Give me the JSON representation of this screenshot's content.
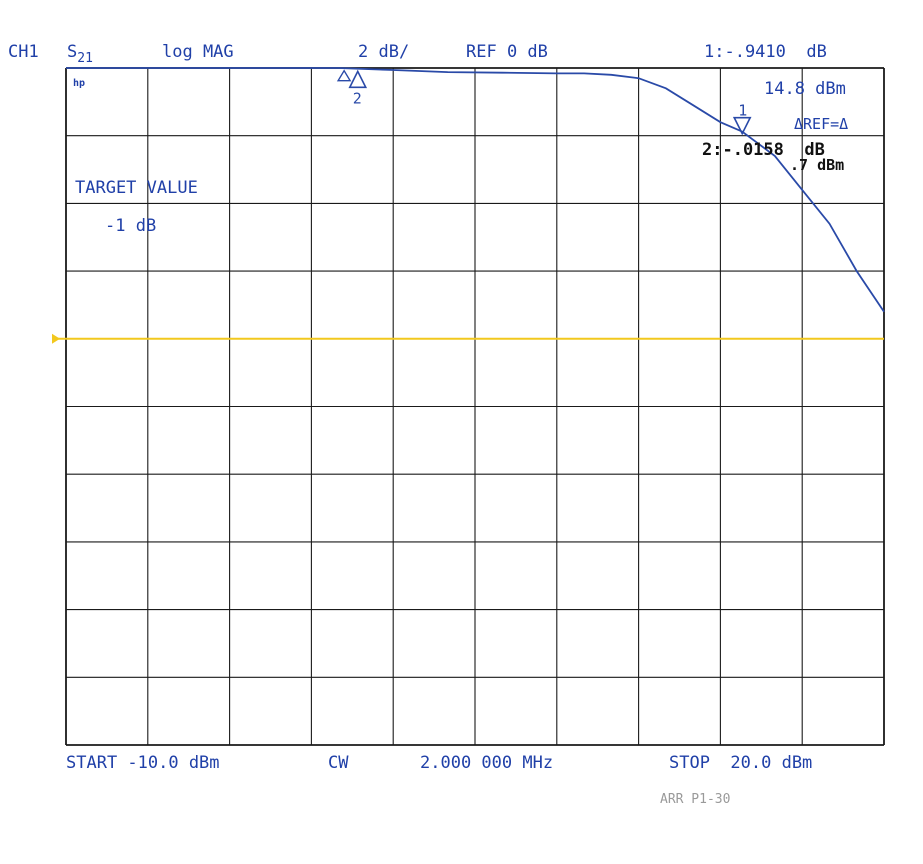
{
  "header": {
    "channel": "CH1",
    "param_base": "S",
    "param_sub": "21",
    "format": "log MAG",
    "scale": "2 dB/",
    "ref": "REF 0 dB",
    "marker1_readout": "1:-.9410  dB",
    "marker1_power": "14.8 dBm",
    "delta_ref": "ΔREF=Δ",
    "marker2_readout": "2:-.0158  dB",
    "marker2_power": ".7 dBm",
    "hp_logo": "hp"
  },
  "target": {
    "label": "TARGET VALUE",
    "value": "-1 dB"
  },
  "footer": {
    "start": "START -10.0 dBm",
    "cw_label": "CW",
    "cw_value": "2.000 000 MHz",
    "stop": "STOP  20.0 dBm",
    "stamp": "ARR P1-30"
  },
  "colors": {
    "trace": "#2a4aa8",
    "grid": "#1a1a1a",
    "reference_line": "#f2c81e",
    "text": "#2040a8"
  },
  "chart_data": {
    "type": "line",
    "xlabel": "",
    "ylabel": "",
    "xlim": [
      -10,
      20
    ],
    "x_unit": "dBm",
    "ylim": [
      -10,
      0
    ],
    "y_unit": "dB",
    "scale_per_div": 2,
    "reference_value": 0,
    "grid": true,
    "series": [
      {
        "x": [
          -10,
          -7,
          -4,
          -1,
          0,
          2,
          4,
          6,
          8,
          9,
          10,
          11,
          12,
          13,
          14,
          14.8,
          16,
          17,
          18,
          19,
          20
        ],
        "y": [
          0,
          0,
          0,
          0,
          0,
          -0.03,
          -0.06,
          -0.07,
          -0.08,
          -0.08,
          -0.1,
          -0.15,
          -0.3,
          -0.55,
          -0.8,
          -0.94,
          -1.3,
          -1.8,
          -2.3,
          -3.0,
          -3.6
        ]
      }
    ],
    "reference_line": {
      "y": -4,
      "color": "#f2c81e"
    },
    "markers": [
      {
        "label": "1",
        "x": 14.8,
        "y": -0.94
      },
      {
        "label": "2",
        "x": 0.7,
        "y": -0.02
      }
    ],
    "delta_marker": {
      "x": 0.2,
      "y": -0.01
    }
  }
}
